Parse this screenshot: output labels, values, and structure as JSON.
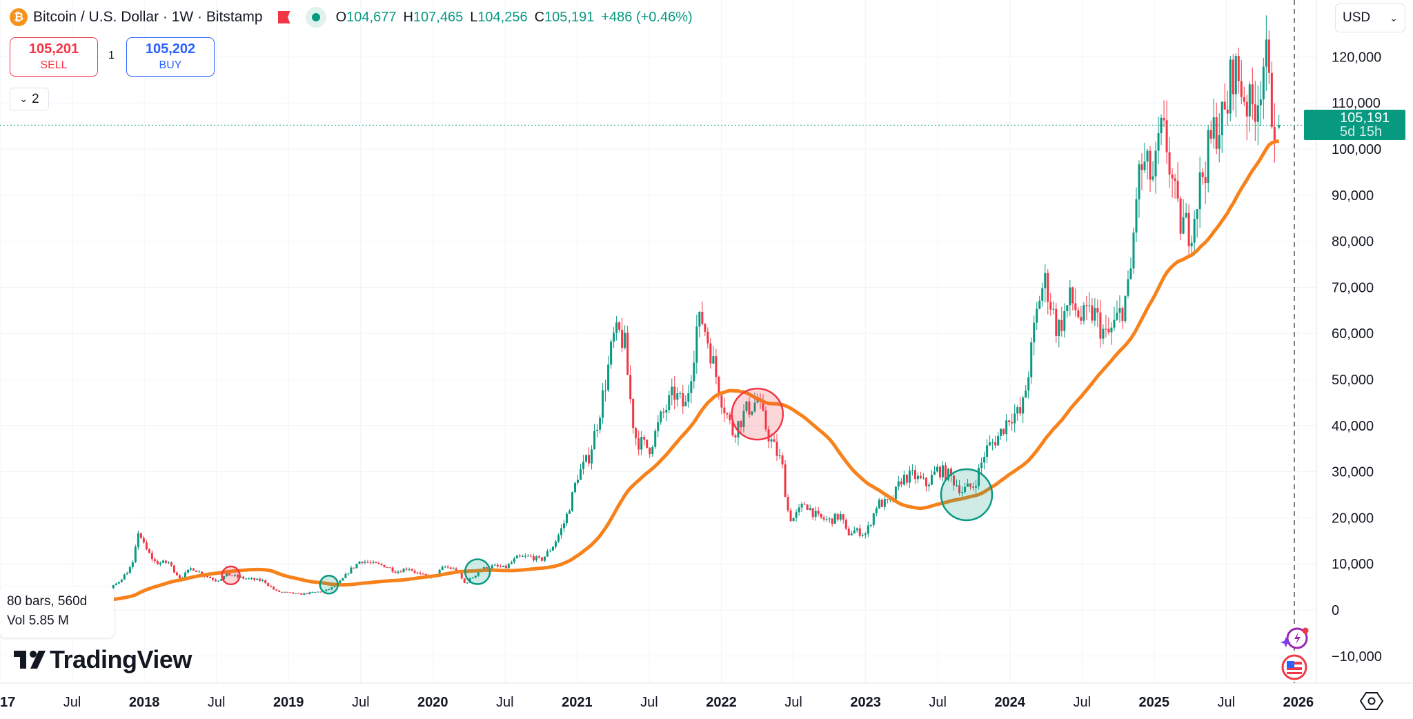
{
  "header": {
    "symbol_icon": "bitcoin-icon",
    "title": "Bitcoin / U.S. Dollar · 1W · Bitstamp",
    "ohlc": [
      {
        "label": "O",
        "value": "104,677"
      },
      {
        "label": "H",
        "value": "107,465"
      },
      {
        "label": "L",
        "value": "104,256"
      },
      {
        "label": "C",
        "value": "105,191"
      }
    ],
    "change": "+486 (+0.46%)"
  },
  "trade": {
    "sell_price": "105,201",
    "sell_label": "SELL",
    "quantity": "1",
    "buy_price": "105,202",
    "buy_label": "BUY"
  },
  "indicators_toggle": {
    "count": "2"
  },
  "currency": "USD",
  "last_price": {
    "value": "105,191",
    "countdown": "5d 15h"
  },
  "range_tooltip": {
    "bars": "80 bars, 560d",
    "volume": "Vol 5.85 M"
  },
  "watermark": "TradingView",
  "colors": {
    "up": "#089981",
    "down": "#f23645",
    "ma": "#f7821b",
    "grid": "#f0f3fa"
  },
  "chart_data": {
    "type": "candlestick",
    "title": "Bitcoin / U.S. Dollar · 1W · Bitstamp",
    "interval": "1W",
    "moving_average_period_weeks": 50,
    "ylim": [
      -15000,
      132000
    ],
    "y_ticks": [
      -10000,
      0,
      10000,
      20000,
      30000,
      40000,
      50000,
      60000,
      70000,
      80000,
      90000,
      100000,
      110000,
      120000
    ],
    "y_tick_labels": [
      "−10,000",
      "0",
      "10,000",
      "20,000",
      "30,000",
      "40,000",
      "50,000",
      "60,000",
      "70,000",
      "80,000",
      "90,000",
      "100,000",
      "110,000",
      "120,000"
    ],
    "x_ticks": [
      {
        "t": 2017.0,
        "label": "2017",
        "bold": true
      },
      {
        "t": 2017.5,
        "label": "Jul"
      },
      {
        "t": 2018.0,
        "label": "2018",
        "bold": true
      },
      {
        "t": 2018.5,
        "label": "Jul"
      },
      {
        "t": 2019.0,
        "label": "2019",
        "bold": true
      },
      {
        "t": 2019.5,
        "label": "Jul"
      },
      {
        "t": 2020.0,
        "label": "2020",
        "bold": true
      },
      {
        "t": 2020.5,
        "label": "Jul"
      },
      {
        "t": 2021.0,
        "label": "2021",
        "bold": true
      },
      {
        "t": 2021.5,
        "label": "Jul"
      },
      {
        "t": 2022.0,
        "label": "2022",
        "bold": true
      },
      {
        "t": 2022.5,
        "label": "Jul"
      },
      {
        "t": 2023.0,
        "label": "2023",
        "bold": true
      },
      {
        "t": 2023.5,
        "label": "Jul"
      },
      {
        "t": 2024.0,
        "label": "2024",
        "bold": true
      },
      {
        "t": 2024.5,
        "label": "Jul"
      },
      {
        "t": 2025.0,
        "label": "2025",
        "bold": true
      },
      {
        "t": 2025.5,
        "label": "Jul"
      },
      {
        "t": 2026.0,
        "label": "2026",
        "bold": true
      }
    ],
    "xlim": [
      2017.0,
      2026.05
    ],
    "price_path": [
      [
        2016.9,
        960
      ],
      [
        2017.08,
        970
      ],
      [
        2017.17,
        1190
      ],
      [
        2017.25,
        1080
      ],
      [
        2017.33,
        1350
      ],
      [
        2017.42,
        2300
      ],
      [
        2017.5,
        2480
      ],
      [
        2017.58,
        2870
      ],
      [
        2017.67,
        4700
      ],
      [
        2017.75,
        4340
      ],
      [
        2017.83,
        6450
      ],
      [
        2017.92,
        10000
      ],
      [
        2017.96,
        17500
      ],
      [
        2018.0,
        13800
      ],
      [
        2018.08,
        10200
      ],
      [
        2018.17,
        10300
      ],
      [
        2018.25,
        6900
      ],
      [
        2018.33,
        9200
      ],
      [
        2018.42,
        7500
      ],
      [
        2018.5,
        6400
      ],
      [
        2018.58,
        7700
      ],
      [
        2018.67,
        7000
      ],
      [
        2018.75,
        6600
      ],
      [
        2018.83,
        6300
      ],
      [
        2018.92,
        4000
      ],
      [
        2019.0,
        3700
      ],
      [
        2019.08,
        3400
      ],
      [
        2019.17,
        3800
      ],
      [
        2019.25,
        4100
      ],
      [
        2019.33,
        5300
      ],
      [
        2019.42,
        8500
      ],
      [
        2019.5,
        10800
      ],
      [
        2019.58,
        10000
      ],
      [
        2019.67,
        9600
      ],
      [
        2019.75,
        8300
      ],
      [
        2019.83,
        9200
      ],
      [
        2019.92,
        7500
      ],
      [
        2020.0,
        7200
      ],
      [
        2020.08,
        9400
      ],
      [
        2020.17,
        8600
      ],
      [
        2020.22,
        5800
      ],
      [
        2020.25,
        6400
      ],
      [
        2020.33,
        8800
      ],
      [
        2020.42,
        9500
      ],
      [
        2020.5,
        9100
      ],
      [
        2020.58,
        11300
      ],
      [
        2020.67,
        11600
      ],
      [
        2020.75,
        10800
      ],
      [
        2020.83,
        13800
      ],
      [
        2020.92,
        19700
      ],
      [
        2021.0,
        29000
      ],
      [
        2021.08,
        33100
      ],
      [
        2021.17,
        45200
      ],
      [
        2021.25,
        58800
      ],
      [
        2021.29,
        60000
      ],
      [
        2021.33,
        57700
      ],
      [
        2021.4,
        38000
      ],
      [
        2021.42,
        36700
      ],
      [
        2021.5,
        35000
      ],
      [
        2021.58,
        41500
      ],
      [
        2021.67,
        47100
      ],
      [
        2021.75,
        43800
      ],
      [
        2021.83,
        61300
      ],
      [
        2021.87,
        63000
      ],
      [
        2021.92,
        57000
      ],
      [
        2022.0,
        46200
      ],
      [
        2022.08,
        38500
      ],
      [
        2022.17,
        43200
      ],
      [
        2022.25,
        45500
      ],
      [
        2022.33,
        37700
      ],
      [
        2022.42,
        31800
      ],
      [
        2022.47,
        20000
      ],
      [
        2022.5,
        19900
      ],
      [
        2022.58,
        23300
      ],
      [
        2022.67,
        20000
      ],
      [
        2022.75,
        19400
      ],
      [
        2022.83,
        20500
      ],
      [
        2022.87,
        16500
      ],
      [
        2022.92,
        17200
      ],
      [
        2023.0,
        16500
      ],
      [
        2023.08,
        23100
      ],
      [
        2023.17,
        23100
      ],
      [
        2023.25,
        28500
      ],
      [
        2023.33,
        29200
      ],
      [
        2023.42,
        27200
      ],
      [
        2023.5,
        30500
      ],
      [
        2023.58,
        29200
      ],
      [
        2023.67,
        25900
      ],
      [
        2023.75,
        27000
      ],
      [
        2023.83,
        34600
      ],
      [
        2023.92,
        37700
      ],
      [
        2024.0,
        42300
      ],
      [
        2024.08,
        42600
      ],
      [
        2024.17,
        61100
      ],
      [
        2024.21,
        69000
      ],
      [
        2024.25,
        71300
      ],
      [
        2024.33,
        60600
      ],
      [
        2024.42,
        67500
      ],
      [
        2024.5,
        62800
      ],
      [
        2024.58,
        64600
      ],
      [
        2024.67,
        58900
      ],
      [
        2024.75,
        63300
      ],
      [
        2024.83,
        70200
      ],
      [
        2024.88,
        92000
      ],
      [
        2024.92,
        96500
      ],
      [
        2025.0,
        93400
      ],
      [
        2025.04,
        103000
      ],
      [
        2025.08,
        102400
      ],
      [
        2025.17,
        84300
      ],
      [
        2025.25,
        82500
      ],
      [
        2025.33,
        94200
      ],
      [
        2025.42,
        104600
      ],
      [
        2025.5,
        107100
      ],
      [
        2025.54,
        118000
      ],
      [
        2025.58,
        115700
      ],
      [
        2025.67,
        108200
      ],
      [
        2025.72,
        112000
      ],
      [
        2025.77,
        121000
      ],
      [
        2025.8,
        111000
      ],
      [
        2025.85,
        104677
      ]
    ],
    "last_candle": {
      "open": 104677,
      "high": 107465,
      "low": 104256,
      "close": 105191
    },
    "signals": [
      {
        "t": 2017.0,
        "price": 800,
        "kind": "buy",
        "size": "small"
      },
      {
        "t": 2018.6,
        "price": 7500,
        "kind": "sell",
        "size": "small"
      },
      {
        "t": 2019.28,
        "price": 5500,
        "kind": "buy",
        "size": "small"
      },
      {
        "t": 2020.31,
        "price": 8300,
        "kind": "buy",
        "size": "medium"
      },
      {
        "t": 2022.25,
        "price": 42500,
        "kind": "sell",
        "size": "large"
      },
      {
        "t": 2023.7,
        "price": 25000,
        "kind": "buy",
        "size": "large"
      }
    ]
  }
}
